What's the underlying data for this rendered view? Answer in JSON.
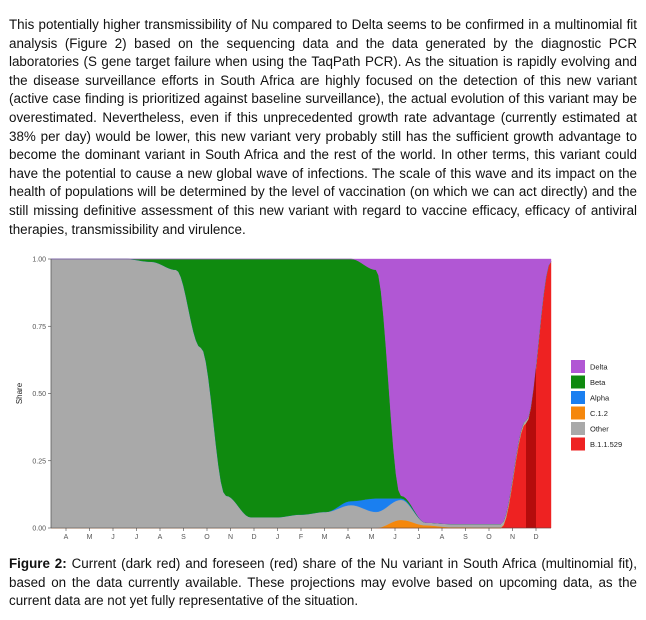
{
  "paragraph": "This potentially higher transmissibility of Nu compared to Delta seems to be confirmed in a multinomial fit analysis (Figure 2) based on the sequencing data and the data generated by the diagnostic PCR laboratories (S gene target failure when using the TaqPath PCR). As the situation is rapidly evolving and the disease surveillance efforts in South Africa are highly focused on the detection of this new variant (active case finding is prioritized against baseline surveillance), the actual evolution of this variant may be overestimated. Nevertheless, even if this unprecedented growth rate advantage (currently estimated at 38% per day) would be lower, this new variant very probably still has the sufficient growth advantage to become the dominant variant in South Africa and the rest of the world. In other terms, this variant could have the potential to cause a new global wave of infections. The scale of this wave and its impact on the health of populations will be determined by the level of vaccination (on which we can act directly) and the still missing definitive assessment of this new variant with regard to vaccine efficacy, efficacy of antiviral therapies, transmissibility and virulence.",
  "caption": {
    "label": "Figure 2:",
    "text": " Current (dark red) and foreseen (red) share of the Nu variant in South Africa (multinomial fit), based on the data currently available. These projections may evolve based on upcoming data, as the current data are not yet fully representative of the situation."
  },
  "chart_data": {
    "type": "area",
    "stacked": true,
    "xlabel": "",
    "ylabel": "Share",
    "ylim": [
      0,
      1
    ],
    "yticks": [
      "0.00",
      "0.25",
      "0.50",
      "0.75",
      "1.00"
    ],
    "x": [
      "A",
      "M",
      "J",
      "J",
      "A",
      "S",
      "O",
      "N",
      "D",
      "J",
      "F",
      "M",
      "A",
      "M",
      "J",
      "J",
      "A",
      "S",
      "O",
      "N",
      "D"
    ],
    "stack_order": [
      "B.1.1.529",
      "C.1.2",
      "Other",
      "Alpha",
      "Beta",
      "Delta"
    ],
    "legend_order": [
      "Delta",
      "Beta",
      "Alpha",
      "C.1.2",
      "Other",
      "B.1.1.529"
    ],
    "colors": {
      "Delta": "#b157d4",
      "Beta": "#0f8a0f",
      "Alpha": "#1a7ff0",
      "C.1.2": "#f5870c",
      "Other": "#a9a9a9",
      "B.1.1.529": "#ee2222",
      "B.1.1.529 current": "#b50c0c"
    },
    "legend_placement": "right",
    "grid": false,
    "series": [
      {
        "name": "Delta",
        "values": [
          0,
          0,
          0,
          0,
          0,
          0,
          0,
          0,
          0,
          0,
          0,
          0,
          0,
          0.04,
          0.88,
          0.98,
          0.985,
          0.985,
          0.985,
          0.6,
          0.01
        ]
      },
      {
        "name": "Beta",
        "values": [
          0,
          0,
          0,
          0,
          0.01,
          0.04,
          0.33,
          0.88,
          0.96,
          0.96,
          0.95,
          0.94,
          0.9,
          0.85,
          0.01,
          0,
          0,
          0,
          0,
          0,
          0
        ]
      },
      {
        "name": "Alpha",
        "values": [
          0,
          0,
          0,
          0,
          0,
          0,
          0,
          0,
          0,
          0,
          0,
          0,
          0.015,
          0.05,
          0.005,
          0,
          0,
          0,
          0,
          0,
          0
        ]
      },
      {
        "name": "C.1.2",
        "values": [
          0,
          0,
          0,
          0,
          0,
          0,
          0,
          0,
          0,
          0,
          0,
          0,
          0,
          0,
          0.03,
          0.01,
          0.003,
          0.002,
          0.002,
          0.001,
          0
        ]
      },
      {
        "name": "Other",
        "values": [
          1,
          1,
          1,
          1,
          0.99,
          0.96,
          0.67,
          0.12,
          0.04,
          0.04,
          0.05,
          0.06,
          0.085,
          0.06,
          0.075,
          0.01,
          0.012,
          0.013,
          0.013,
          0.01,
          0
        ]
      },
      {
        "name": "B.1.1.529",
        "values": [
          0,
          0,
          0,
          0,
          0,
          0,
          0,
          0,
          0,
          0,
          0,
          0,
          0,
          0,
          0,
          0,
          0,
          0,
          0,
          0.389,
          0.99
        ]
      }
    ]
  }
}
